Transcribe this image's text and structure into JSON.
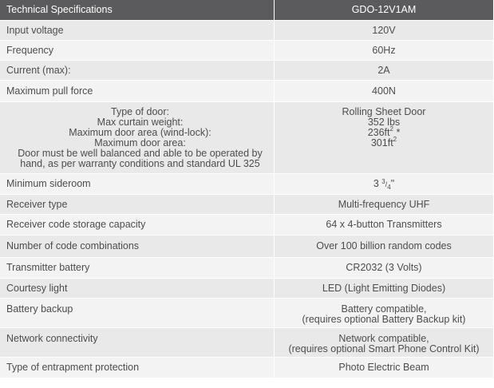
{
  "header": {
    "left": "Technical Specifications",
    "right": "GDO-12V1AM"
  },
  "rows": [
    {
      "label": "Input voltage",
      "value": "120V"
    },
    {
      "label": "Frequency",
      "value": "60Hz"
    },
    {
      "label": "Current (max):",
      "value": "2A"
    },
    {
      "label": "Maximum pull force",
      "value": "400N"
    },
    {
      "label_lines": [
        "Type of door:",
        "Max curtain weight:",
        "Maximum door area (wind-lock):",
        "Maximum door area:",
        "Door must be well balanced and able to be operated by",
        "hand, as per warranty conditions and standard UL 325"
      ],
      "value_lines": [
        "Rolling Sheet Door",
        "352 lbs",
        "236ft",
        "301ft"
      ],
      "value_superscripts": [
        "2",
        "2"
      ],
      "value_marker": "*"
    },
    {
      "label": "Minimum sideroom",
      "value_main": "3",
      "value_frac_num": "3",
      "value_frac_den": "4",
      "value_suffix": "\""
    },
    {
      "label": "Receiver type",
      "value": "Multi-frequency UHF"
    },
    {
      "label": "Receiver code storage capacity",
      "value": "64 x  4-button Transmitters"
    },
    {
      "label": "Number of code combinations",
      "value": "Over 100 billion random codes"
    },
    {
      "label": "Transmitter battery",
      "value": "CR2032 (3 Volts)"
    },
    {
      "label": "Courtesy light",
      "value": "LED (Light Emitting Diodes)"
    },
    {
      "label": "Battery backup",
      "value_lines": [
        "Battery compatible,",
        "(requires optional Battery Backup kit)"
      ]
    },
    {
      "label": "Network connectivity",
      "value_lines": [
        "Network compatible,",
        "(requires optional Smart Phone Control Kit)"
      ]
    },
    {
      "label": "Type of entrapment protection",
      "value": "Photo Electric Beam"
    }
  ]
}
